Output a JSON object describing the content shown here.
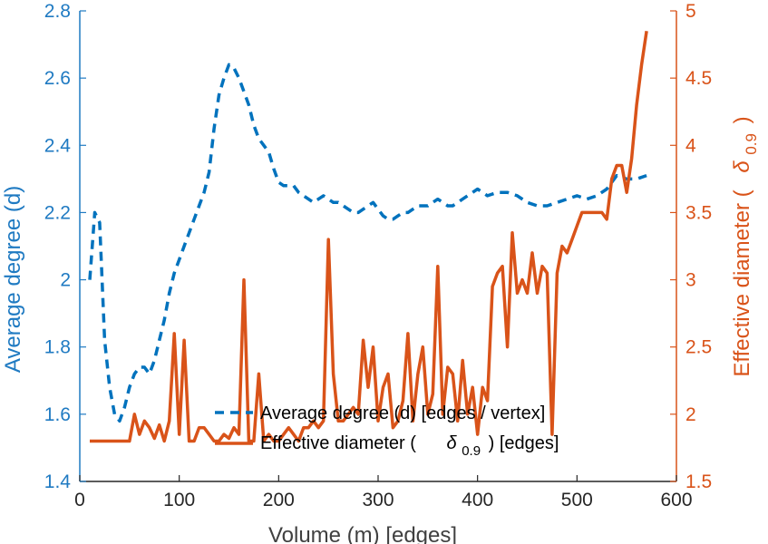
{
  "colors": {
    "left_axis": "#1f7ac2",
    "right_axis": "#d95319",
    "degree_series": "#0072bd",
    "diameter_series": "#d95319",
    "x_axis": "#262626"
  },
  "chart_data": {
    "type": "line",
    "xlabel": "Volume (m) [edges]",
    "ylabel_left": "Average degree (d)",
    "ylabel_right": "Effective diameter ( δ0.9 )",
    "ylabel_right_parts": [
      "Effective diameter (",
      "δ",
      "0.9",
      ")"
    ],
    "xlim": [
      0,
      600
    ],
    "ylim_left": [
      1.4,
      2.8
    ],
    "ylim_right": [
      1.5,
      5
    ],
    "xticks": [
      0,
      100,
      200,
      300,
      400,
      500,
      600
    ],
    "yticks_left": [
      1.4,
      1.6,
      1.8,
      2,
      2.2,
      2.4,
      2.6,
      2.8
    ],
    "yticks_right": [
      1.5,
      2,
      2.5,
      3,
      3.5,
      4,
      4.5,
      5
    ],
    "xtick_labels": [
      "0",
      "100",
      "200",
      "300",
      "400",
      "500",
      "600"
    ],
    "ytick_labels_left": [
      "1.4",
      "1.6",
      "1.8",
      "2",
      "2.2",
      "2.4",
      "2.6",
      "2.8"
    ],
    "ytick_labels_right": [
      "1.5",
      "2",
      "2.5",
      "3",
      "3.5",
      "4",
      "4.5",
      "5"
    ],
    "grid": false,
    "legend_position": "bottom-center",
    "series": [
      {
        "name": "Average degree (d) [edges / vertex]",
        "axis": "left",
        "style": "dashed",
        "x": [
          10,
          15,
          20,
          25,
          30,
          35,
          40,
          45,
          50,
          55,
          60,
          65,
          70,
          75,
          80,
          85,
          90,
          95,
          100,
          105,
          110,
          115,
          120,
          125,
          130,
          135,
          140,
          145,
          150,
          155,
          160,
          165,
          170,
          175,
          180,
          185,
          190,
          195,
          200,
          205,
          210,
          215,
          220,
          225,
          230,
          235,
          240,
          245,
          250,
          255,
          260,
          265,
          270,
          275,
          280,
          285,
          290,
          295,
          300,
          305,
          310,
          315,
          320,
          325,
          330,
          335,
          340,
          345,
          350,
          355,
          360,
          365,
          370,
          375,
          380,
          385,
          390,
          395,
          400,
          410,
          420,
          430,
          440,
          450,
          460,
          470,
          480,
          490,
          500,
          510,
          520,
          530,
          540,
          550,
          560,
          570
        ],
        "y": [
          2.0,
          2.2,
          2.17,
          1.82,
          1.68,
          1.6,
          1.58,
          1.62,
          1.68,
          1.72,
          1.74,
          1.74,
          1.72,
          1.76,
          1.82,
          1.88,
          1.96,
          2.02,
          2.06,
          2.1,
          2.14,
          2.18,
          2.22,
          2.26,
          2.32,
          2.45,
          2.55,
          2.6,
          2.64,
          2.63,
          2.6,
          2.56,
          2.52,
          2.46,
          2.42,
          2.4,
          2.38,
          2.33,
          2.29,
          2.28,
          2.28,
          2.28,
          2.26,
          2.25,
          2.24,
          2.23,
          2.24,
          2.25,
          2.24,
          2.23,
          2.23,
          2.22,
          2.21,
          2.2,
          2.2,
          2.21,
          2.22,
          2.23,
          2.21,
          2.19,
          2.18,
          2.18,
          2.19,
          2.2,
          2.2,
          2.21,
          2.22,
          2.22,
          2.22,
          2.23,
          2.24,
          2.23,
          2.22,
          2.22,
          2.23,
          2.24,
          2.25,
          2.26,
          2.27,
          2.25,
          2.26,
          2.26,
          2.25,
          2.23,
          2.22,
          2.22,
          2.23,
          2.24,
          2.25,
          2.24,
          2.25,
          2.27,
          2.31,
          2.3,
          2.3,
          2.31
        ]
      },
      {
        "name": "Effective diameter ( δ0.9 ) [edges]",
        "name_parts": [
          "Effective diameter (",
          "δ",
          "0.9",
          ") [edges]"
        ],
        "axis": "right",
        "style": "solid",
        "x": [
          10,
          50,
          55,
          60,
          65,
          70,
          75,
          80,
          85,
          90,
          95,
          100,
          105,
          110,
          115,
          120,
          125,
          130,
          135,
          140,
          145,
          150,
          155,
          160,
          165,
          170,
          175,
          180,
          185,
          190,
          195,
          200,
          205,
          210,
          215,
          220,
          225,
          230,
          235,
          240,
          245,
          250,
          255,
          260,
          265,
          270,
          275,
          280,
          285,
          290,
          295,
          300,
          305,
          310,
          315,
          320,
          325,
          330,
          335,
          340,
          345,
          350,
          355,
          360,
          365,
          370,
          375,
          380,
          385,
          390,
          395,
          400,
          405,
          410,
          415,
          420,
          425,
          430,
          435,
          440,
          445,
          450,
          455,
          460,
          465,
          470,
          475,
          480,
          485,
          490,
          495,
          500,
          505,
          510,
          515,
          520,
          525,
          530,
          535,
          540,
          545,
          550,
          555,
          560,
          565,
          570
        ],
        "y": [
          1.8,
          1.8,
          2.0,
          1.85,
          1.95,
          1.9,
          1.82,
          1.92,
          1.8,
          1.95,
          2.6,
          1.85,
          2.55,
          1.8,
          1.8,
          1.9,
          1.9,
          1.85,
          1.8,
          1.8,
          1.85,
          1.82,
          1.9,
          1.85,
          3.0,
          1.8,
          1.8,
          2.3,
          1.8,
          1.85,
          1.8,
          1.8,
          1.85,
          1.9,
          1.85,
          1.8,
          1.9,
          1.9,
          1.95,
          1.9,
          1.95,
          3.3,
          2.3,
          1.95,
          1.95,
          2.0,
          2.05,
          2.0,
          2.55,
          2.2,
          2.5,
          1.95,
          2.2,
          2.3,
          1.9,
          1.95,
          2.1,
          2.6,
          1.95,
          2.3,
          2.5,
          2.0,
          2.15,
          3.1,
          2.0,
          2.35,
          2.3,
          1.95,
          2.4,
          2.0,
          2.2,
          1.85,
          2.2,
          2.1,
          2.95,
          3.05,
          3.1,
          2.5,
          3.35,
          2.9,
          3.0,
          2.9,
          3.2,
          2.9,
          3.1,
          3.05,
          1.85,
          3.05,
          3.25,
          3.2,
          3.3,
          3.4,
          3.5,
          3.5,
          3.5,
          3.5,
          3.5,
          3.45,
          3.75,
          3.85,
          3.85,
          3.65,
          3.9,
          4.3,
          4.6,
          4.85
        ]
      }
    ]
  }
}
